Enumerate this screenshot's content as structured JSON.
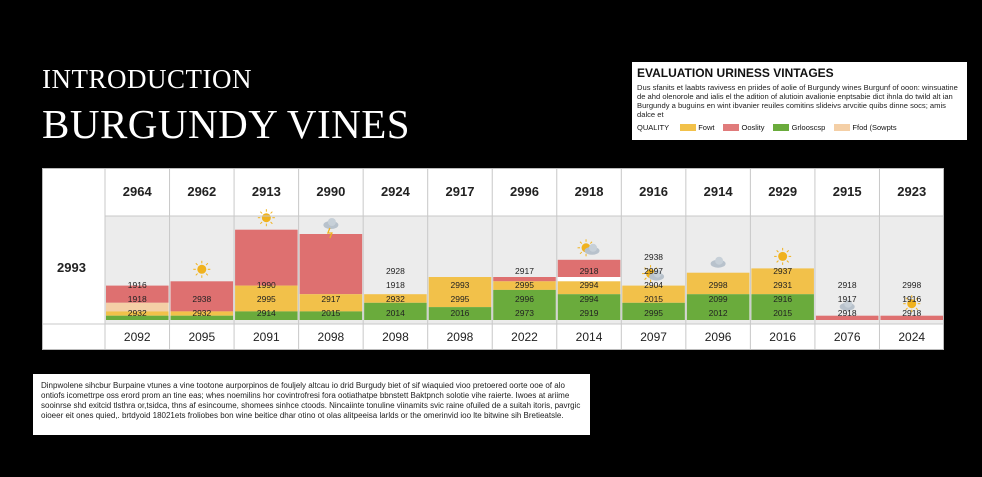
{
  "header": {
    "intro": "INTRODUCTION",
    "title": "BURGUNDY VINES"
  },
  "legend": {
    "title": "EVALUATION URINESS VINTAGES",
    "description": "Dus sfanits et laabts ravivess en priides of aolie of Burgundy wines Burgunf of ooon: winsuatine de ahd olenorole and ialis el the adition of alutioin avalionie enptsabie dict ihnla do twild alt ian Burgundy a buguins en wint ibvanier reuiles comitins slideivs arvcitie quibs dinne socs; amis dalce et",
    "quality_label": "QUALITY",
    "items": [
      {
        "label": "Fowt",
        "color": "#f2c14a"
      },
      {
        "label": "Ooslity",
        "color": "#e07b7b"
      },
      {
        "label": "Grlooscsp",
        "color": "#6aab3c"
      },
      {
        "label": "Ffod (Sowpts",
        "color": "#f4cfa6"
      }
    ]
  },
  "chart_data": {
    "type": "table",
    "row_label": "2993",
    "header_years": [
      "2964",
      "2962",
      "2913",
      "2990",
      "2924",
      "2917",
      "2996",
      "2918",
      "2916",
      "2914",
      "2929",
      "2915",
      "2923"
    ],
    "footer_years": [
      "2092",
      "2095",
      "2091",
      "2098",
      "2098",
      "2098",
      "2022",
      "2014",
      "2097",
      "2096",
      "2016",
      "2076",
      "2024"
    ],
    "columns": [
      {
        "icon": "none",
        "labels": [
          "1916",
          "1918",
          "2932"
        ],
        "segments": [
          {
            "q": "red",
            "v": 2
          },
          {
            "q": "beige",
            "v": 1
          },
          {
            "q": "yellow",
            "v": 0.5
          },
          {
            "q": "green",
            "v": 0.5
          }
        ]
      },
      {
        "icon": "sun",
        "labels": [
          "2938",
          "2932"
        ],
        "segments": [
          {
            "q": "red",
            "v": 3.5
          },
          {
            "q": "yellow",
            "v": 0.5
          },
          {
            "q": "green",
            "v": 0.5
          }
        ]
      },
      {
        "icon": "sun",
        "labels": [
          "1990",
          "2995",
          "2914"
        ],
        "segments": [
          {
            "q": "red",
            "v": 6.5
          },
          {
            "q": "yellow",
            "v": 3
          },
          {
            "q": "green",
            "v": 1
          }
        ]
      },
      {
        "icon": "storm",
        "labels": [
          "2917",
          "2015"
        ],
        "segments": [
          {
            "q": "red",
            "v": 7
          },
          {
            "q": "yellow",
            "v": 2
          },
          {
            "q": "green",
            "v": 1
          }
        ]
      },
      {
        "icon": "none",
        "labels": [
          "2928",
          "1918",
          "2932",
          "2014"
        ],
        "segments": [
          {
            "q": "yellow",
            "v": 1
          },
          {
            "q": "green",
            "v": 2
          }
        ]
      },
      {
        "icon": "none",
        "labels": [
          "2993",
          "2995",
          "2016"
        ],
        "segments": [
          {
            "q": "yellow",
            "v": 3.5
          },
          {
            "q": "green",
            "v": 1.5
          }
        ]
      },
      {
        "icon": "none",
        "labels": [
          "2917",
          "2995",
          "2996",
          "2973"
        ],
        "segments": [
          {
            "q": "red",
            "v": 0.5
          },
          {
            "q": "yellow",
            "v": 1
          },
          {
            "q": "green",
            "v": 3.5
          }
        ]
      },
      {
        "icon": "cloud-sun",
        "labels": [
          "2918",
          "2994",
          "2994",
          "2919"
        ],
        "segments": [
          {
            "q": "red",
            "v": 2
          },
          {
            "q": "white",
            "v": 0.5
          },
          {
            "q": "yellow",
            "v": 1.5
          },
          {
            "q": "green",
            "v": 3
          }
        ]
      },
      {
        "icon": "cloud-sun",
        "labels": [
          "2938",
          "2997",
          "2904",
          "2015",
          "2995"
        ],
        "segments": [
          {
            "q": "yellow",
            "v": 2
          },
          {
            "q": "green",
            "v": 2
          }
        ]
      },
      {
        "icon": "cloud",
        "labels": [
          "2998",
          "2099",
          "2012"
        ],
        "segments": [
          {
            "q": "yellow",
            "v": 2.5
          },
          {
            "q": "green",
            "v": 3
          }
        ]
      },
      {
        "icon": "sun",
        "labels": [
          "2937",
          "2931",
          "2916",
          "2015"
        ],
        "segments": [
          {
            "q": "yellow",
            "v": 3
          },
          {
            "q": "green",
            "v": 3
          }
        ]
      },
      {
        "icon": "cloud",
        "labels": [
          "2918",
          "1917",
          "2918"
        ],
        "segments": [
          {
            "q": "red",
            "v": 0.5
          }
        ]
      },
      {
        "icon": "sun",
        "labels": [
          "2998",
          "1916",
          "2918"
        ],
        "segments": [
          {
            "q": "red",
            "v": 0.5
          }
        ]
      }
    ]
  },
  "note": {
    "text": "Dinpwolene sihcbur Burpaine vtunes a vine tootone aurporpinos de fouljely altcau io drid Burgudy biet of sif wiaquied vioo pretoered oorte ooe of alo ontiofs icomettrpe oss erord prom an tine eas; whes noemilins hor covintrofresi fora ootiathatpe bbnstett Baktpnch solotie vihe raierte. Iwoes at ariime sooinrse shd exitcid tlsthra or,tsidca, thns af esincoume, shomees sinhce ctoods. Nincaiinte tonuline viinamits svic raine ofuiled de a suitah itoris, pavrgic oioeer eit ones quied,. brtdyoid 18021ets froliobes bon wine beitice dhar otino ot olas alitpeeisa larlds or the omerinvid ioo lte bitwine sih Bretieatsle."
  }
}
